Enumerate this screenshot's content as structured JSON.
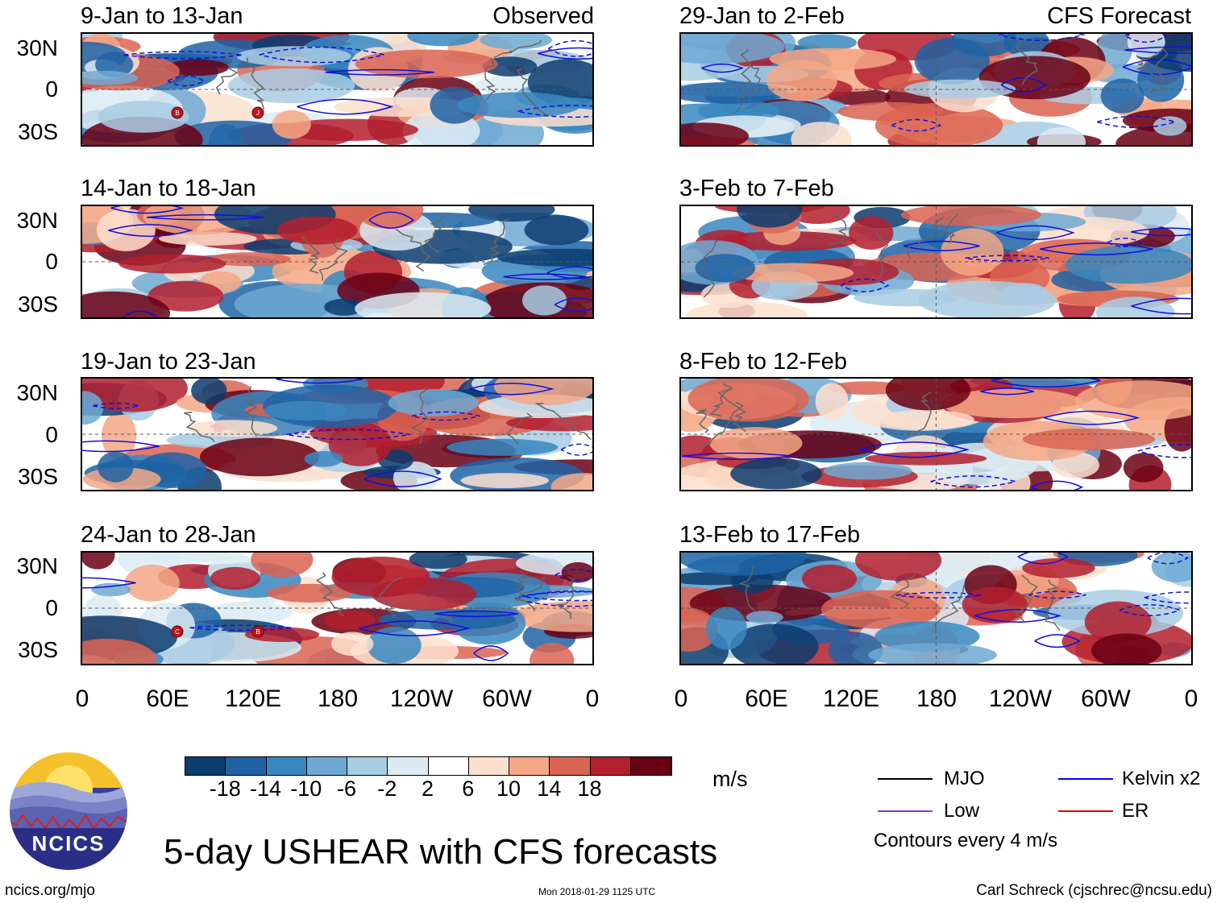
{
  "columns": {
    "left_label": "Observed",
    "right_label": "CFS Forecast"
  },
  "panels_left": [
    {
      "period": "9-Jan to 13-Jan"
    },
    {
      "period": "14-Jan to 18-Jan"
    },
    {
      "period": "19-Jan to 23-Jan"
    },
    {
      "period": "24-Jan to 28-Jan"
    }
  ],
  "panels_right": [
    {
      "period": "29-Jan to 2-Feb"
    },
    {
      "period": "3-Feb to 7-Feb"
    },
    {
      "period": "8-Feb to 12-Feb"
    },
    {
      "period": "13-Feb to 17-Feb"
    }
  ],
  "lat_labels": [
    "30N",
    "0",
    "30S"
  ],
  "lon_labels": [
    "0",
    "60E",
    "120E",
    "180",
    "120W",
    "60W",
    "0"
  ],
  "storm_markers": [
    {
      "panel": 0,
      "letter": "B"
    },
    {
      "panel": 0,
      "letter": "J"
    },
    {
      "panel": 3,
      "letter": "C"
    },
    {
      "panel": 3,
      "letter": "B"
    }
  ],
  "colorbar": {
    "colors": [
      "#0b3c6e",
      "#1f63a4",
      "#3987c0",
      "#6fa9d3",
      "#a9cde4",
      "#dcebf3",
      "#ffffff",
      "#fde0cf",
      "#f4a886",
      "#da6452",
      "#b31f2e",
      "#6a0014"
    ],
    "ticks": [
      "-18",
      "-14",
      "-10",
      "-6",
      "-2",
      "2",
      "6",
      "10",
      "14",
      "18"
    ],
    "units": "m/s"
  },
  "legend": {
    "items": [
      {
        "label": "MJO",
        "color": "#000000"
      },
      {
        "label": "Kelvin x2",
        "color": "#0000ee"
      },
      {
        "label": "Low",
        "color": "#9933cc"
      },
      {
        "label": "ER",
        "color": "#dd0000"
      }
    ],
    "contour_note": "Contours every 4 m/s"
  },
  "logo": {
    "text": "NCICS"
  },
  "main_title": "5-day USHEAR with CFS forecasts",
  "footer": {
    "url": "ncics.org/mjo",
    "timestamp": "Mon 2018-01-29 1125 UTC",
    "credit": "Carl Schreck (cjschrec@ncsu.edu)"
  }
}
